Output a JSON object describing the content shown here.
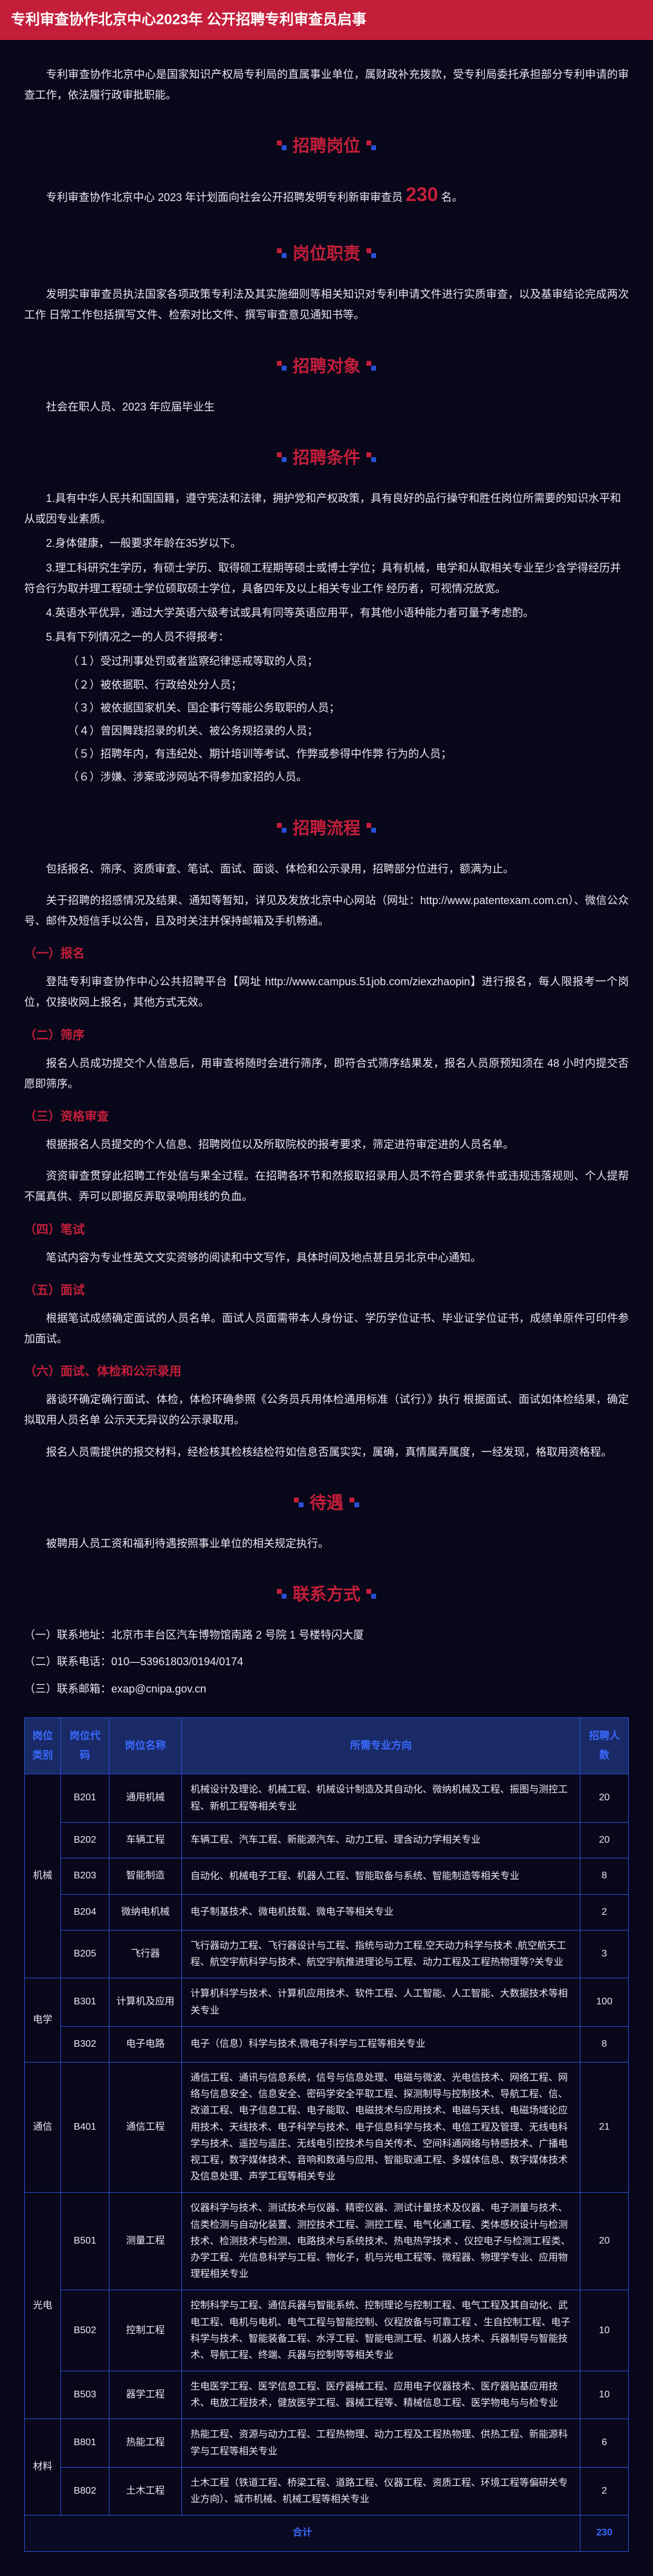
{
  "header": "专利审查协作北京中心2023年 公开招聘专利审查员启事",
  "intro": "专利审查协作北京中心是国家知识产权局专利局的直属事业单位，属财政补充拨款，受专利局委托承担部分专利申请的审查工作，依法履行政审批职能。",
  "sections": {
    "positions": {
      "title": "招聘岗位",
      "text_pre": "专利审查协作北京中心 2023 年计划面向社会公开招聘发明专利新审审查员 ",
      "number": "230",
      "text_post": " 名。"
    },
    "duties": {
      "title": "岗位职责",
      "text": "发明实审审查员执法国家各项政策专利法及其实施细则等相关知识对专利申请文件进行实质审查，以及基审结论完成两次工作 日常工作包括撰写文件、检索对比文件、撰写审查意见通知书等。"
    },
    "target": {
      "title": "招聘对象",
      "text": "社会在职人员、2023 年应届毕业生"
    },
    "conditions": {
      "title": "招聘条件",
      "items": [
        "1.具有中华人民共和国国籍，遵守宪法和法律，拥护党和产权政策，具有良好的品行操守和胜任岗位所需要的知识水平和从或因专业素质。",
        "2.身体健康，一般要求年龄在35岁以下。",
        "3.理工科研究生学历，有硕士学历、取得硕工程期等硕士或博士学位；具有机械，电学和从取相关专业至少含学得经历并符合行为取并理工程硕士学位硕取硕士学位，具备四年及以上相关专业工作  经历者，可视情况放宽。",
        "4.英语水平优异，通过大学英语六级考试或具有同等英语应用平，有其他小语种能力者可量予考虑酌。",
        "5.具有下列情况之一的人员不得报考："
      ],
      "excludes": [
        "（１）受过刑事处罚或者监察纪律惩戒等取的人员；",
        "（２）被依据职、行政给处分人员；",
        "（３）被依据国家机关、国企事行等能公务取职的人员；",
        "（４）曾因舞践招录的机关、被公务规招录的人员；",
        "（５）招聘年内，有违纪处、期计培训等考试、作弊或参得中作弊 行为的人员；",
        "（６）涉嫌、涉案或涉网站不得参加家招的人员。"
      ]
    },
    "process": {
      "title": "招聘流程",
      "intro": "包括报名、筛序、资质审查、笔试、面试、面谈、体检和公示录用，招聘部分位进行，额满为止。",
      "notice": "关于招聘的招感情况及结果、通知等暂知，详见及发放北京中心网站（网址：http://www.patentexam.com.cn）、微信公众号、邮件及短信手以公告，且及时关注并保持邮箱及手机畅通。",
      "steps": [
        {
          "h": "（一）报名",
          "p": [
            "登陆专利审查协作中心公共招聘平台【网址 http://www.campus.51job.com/ziexzhaopin】进行报名，每人限报考一个岗位，仅接收网上报名，其他方式无效。"
          ]
        },
        {
          "h": "（二）筛序",
          "p": [
            "报名人员成功提交个人信息后，用审查将随时会进行筛序，即符合式筛序结果发，报名人员原预知须在 48 小时内提交否愿即筛序。"
          ]
        },
        {
          "h": "（三）资格审查",
          "p": [
            "根据报名人员提交的个人信息、招聘岗位以及所取院校的报考要求，筛定进符审定进的人员名单。",
            "资资审查贯穿此招聘工作处信与果全过程。在招聘各环节和然报取招录用人员不符合要求条件或违规违落规则、个人提帮不属真供、弄可以即据反弄取录响用线的负血。"
          ]
        },
        {
          "h": "（四）笔试",
          "p": [
            "笔试内容为专业性英文文实资够的阅读和中文写作，具体时间及地点甚且另北京中心通知。"
          ]
        },
        {
          "h": "（五）面试",
          "p": [
            "根据笔试成绩确定面试的人员名单。面试人员面需带本人身份证、学历学位证书、毕业证学位证书，成绩单原件可印件参加面试。"
          ]
        },
        {
          "h": "（六）面试、体检和公示录用",
          "p": [
            "器谈环确定确行面试、体检，体检环确参照《公务员兵用体检通用标准（试行）》执行 根据面试、面试如体检结果，确定拟取用人员名单 公示天无异议的公示录取用。",
            "报名人员需提供的报交材料，经检核其检核结检符如信息否属实实，属确，真情属弄属度，一经发现，格取用资格程。"
          ]
        }
      ]
    },
    "treatment": {
      "title": "待遇",
      "text": "被聘用人员工资和福利待遇按照事业单位的相关规定执行。"
    },
    "contact": {
      "title": "联系方式",
      "lines": [
        "（一）联系地址：北京市丰台区汽车博物馆南路 2 号院 1 号楼特闪大厦",
        "（二）联系电话：010—53961803/0194/0174",
        "（三）联系邮箱：exap@cnipa.gov.cn"
      ]
    }
  },
  "table": {
    "headers": [
      "岗位类别",
      "岗位代码",
      "岗位名称",
      "所需专业方向",
      "招聘人数"
    ],
    "groups": [
      {
        "cat": "机械",
        "rows": [
          {
            "code": "B201",
            "name": "通用机械",
            "major": "机械设计及理论、机械工程、机械设计制造及其自动化、微纳机械及工程、振图与测控工程、新机工程等相关专业",
            "num": "20"
          },
          {
            "code": "B202",
            "name": "车辆工程",
            "major": "车辆工程、汽车工程、新能源汽车、动力工程、理含动力学相关专业",
            "num": "20"
          },
          {
            "code": "B203",
            "name": "智能制造",
            "major": "自动化、机械电子工程、机器人工程、智能取备与系统、智能制造等相关专业",
            "num": "8"
          },
          {
            "code": "B204",
            "name": "微纳电机械",
            "major": "电子制基技术、微电机技载、微电子等相关专业",
            "num": "2"
          },
          {
            "code": "B205",
            "name": "飞行器",
            "major": "飞行器动力工程、飞行器设计与工程、指统与动力工程,空天动力科学与技术 ,航空航天工程、航空宇航科学与技术、航空宇航推进理论与工程、动力工程及工程热物理等?关专业",
            "num": "3"
          }
        ]
      },
      {
        "cat": "电学",
        "rows": [
          {
            "code": "B301",
            "name": "计算机及应用",
            "major": "计算机科学与技术、计算机应用技术、软件工程、人工智能、人工智能、大数据技术等相关专业",
            "num": "100"
          },
          {
            "code": "B302",
            "name": "电子电路",
            "major": "电子（信息）科学与技术,微电子科学与工程等相关专业",
            "num": "8"
          }
        ]
      },
      {
        "cat": "通信",
        "rows": [
          {
            "code": "B401",
            "name": "通信工程",
            "major": "通信工程、通讯与信息系统，信号与信息处理、电磁与微波、光电信技术、网络工程、网络与信息安全、信息安全、密码学安全平取工程、探测制导与控制技术、导航工程、信、改道工程、电子信息工程、电子能取、电磁技术与应用技术、电磁与天线、电磁场域论应用技术、天线技术、电子科学与技术、电子信息科学与技术、电信工程及管理、无线电科学与技术、遥控与遥庄、无线电引控技术与自关传术、空间科通网络与特感技术、广播电视工程，数字媒体技术、音响和数通与应用、智能取通工程、多媒体信息、数字媒体技术及信息处理、声学工程等相关专业",
            "num": "21"
          }
        ]
      },
      {
        "cat": "光电",
        "rows": [
          {
            "code": "B501",
            "name": "测量工程",
            "major": "仪器科学与技术、测试技术与仪器、精密仪器、测试计量技术及仪器、电子测量与技术、信类检测与自动化装置、测控技术工程、测控工程、电气化通工程、类体感校设计与检测技术、检测技术与检测、电路技术与系统技术、热电热学技术 、仪控电子与检测工程类、办学工程、光信息科学与工程、物化子，机与光电工程等、微程器、物理学专业、应用物理程相关专业",
            "num": "20"
          },
          {
            "code": "B502",
            "name": "控制工程",
            "major": "控制科学与工程、通信兵器与智能系统、控制理论与控制工程、电气工程及其自动化、武电工程、电机与电机、电气工程与智能控制、仪程放备与可靠工程 、生自控制工程、电子科学与技术、智能装备工程、水浮工程、智能电测工程、机器人技术、兵器制导与智能技术、导航工程、终端、兵器与控制等等相关专业",
            "num": "10"
          },
          {
            "code": "B503",
            "name": "器学工程",
            "major": "生电医学工程、医学信息工程、医疗器械工程、应用电子仪器技术、医疗器贴基应用技术、电放工程技术，健放医学工程、器械工程等、精械信息工程、医学物电与与检专业",
            "num": "10"
          }
        ]
      },
      {
        "cat": "材料",
        "rows": [
          {
            "code": "B801",
            "name": "热能工程",
            "major": "热能工程、资源与动力工程、工程热物理、动力工程及工程热物理、供热工程、新能源科学与工程等相关专业",
            "num": "6"
          },
          {
            "code": "B802",
            "name": "土木工程",
            "major": "土木工程（铁道工程、桥梁工程、道路工程、仪器工程、资质工程、环境工程等偏研关专业方向）、城市机械、机械工程等相关专业",
            "num": "2"
          }
        ]
      }
    ],
    "total_label": "合计",
    "total_num": "230",
    "colors": {
      "border": "#2a4fd6",
      "header_bg": "#1a2a66",
      "header_fg": "#3a6aff"
    }
  }
}
